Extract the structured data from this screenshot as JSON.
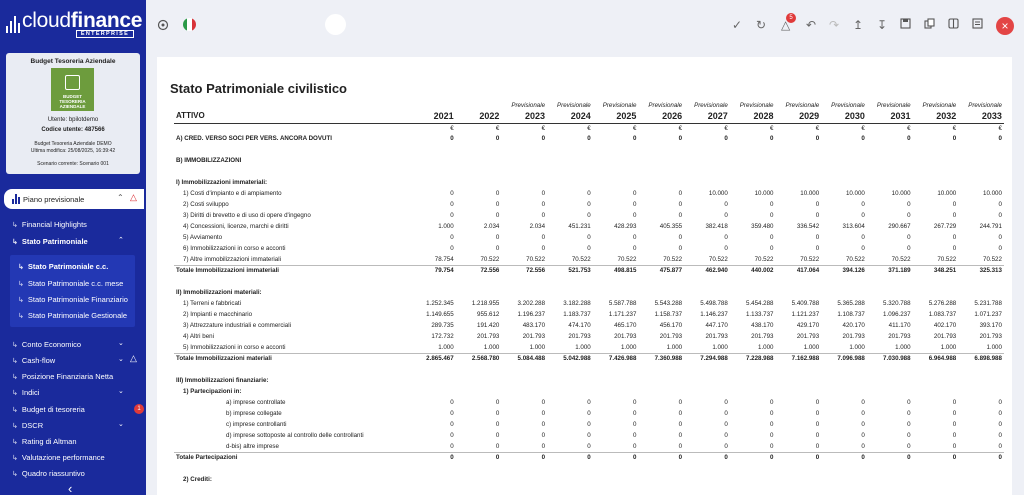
{
  "brand": {
    "name_light": "cloud",
    "name_bold": "finance",
    "edition": "ENTERPRISE"
  },
  "company": {
    "title": "Budget Tesoreria Aziendale",
    "logo_text": "BUDGET TESORERIA AZIENDALE",
    "user_line": "Utente: bpilotdemo",
    "code_line": "Codice utente: 487566",
    "demo_line": "Budget Tesoreria Aziendale DEMO",
    "modified_line": "Ultima modifica: 25/08/2025, 16:39:42",
    "scenario_line": "Scenario corrente: Scenario 001"
  },
  "nav": {
    "main_item": "Piano previsionale",
    "items": {
      "financial_highlights": "Financial Highlights",
      "stato_patrimoniale": "Stato Patrimoniale",
      "sp_cc": "Stato Patrimoniale c.c.",
      "sp_cc_mese": "Stato Patrimoniale c.c. mese",
      "sp_finanziario": "Stato Patrimoniale Finanziario",
      "sp_gestionale": "Stato Patrimoniale Gestionale",
      "conto_economico": "Conto Economico",
      "cash_flow": "Cash-flow",
      "pfn": "Posizione Finanziaria Netta",
      "indici": "Indici",
      "budget_tesoreria": "Budget di tesoreria",
      "dscr": "DSCR",
      "altman": "Rating di Altman",
      "valutazione": "Valutazione performance",
      "quadro": "Quadro riassuntivo"
    },
    "badge_budget": "1"
  },
  "topbar": {
    "notifications": "5"
  },
  "report": {
    "title": "Stato Patrimoniale civilistico",
    "header_label": "ATTIVO",
    "forecast_label": "Previsionale",
    "currency": "€",
    "years": [
      "2021",
      "2022",
      "2023",
      "2024",
      "2025",
      "2026",
      "2027",
      "2028",
      "2029",
      "2030",
      "2031",
      "2032",
      "2033"
    ],
    "rows": [
      {
        "label": "A) CRED. VERSO SOCI PER VERS. ANCORA DOVUTI",
        "type": "bold",
        "values": [
          "0",
          "0",
          "0",
          "0",
          "0",
          "0",
          "0",
          "0",
          "0",
          "0",
          "0",
          "0",
          "0"
        ]
      },
      {
        "label": "",
        "type": "spacer"
      },
      {
        "label": "B) IMMOBILIZZAZIONI",
        "type": "header"
      },
      {
        "label": "",
        "type": "spacer"
      },
      {
        "label": "I) Immobilizzazioni immateriali:",
        "type": "header"
      },
      {
        "label": "1) Costi d'impianto e di ampiamento",
        "indent": 1,
        "values": [
          "0",
          "0",
          "0",
          "0",
          "0",
          "0",
          "10.000",
          "10.000",
          "10.000",
          "10.000",
          "10.000",
          "10.000",
          "10.000"
        ]
      },
      {
        "label": "2) Costi sviluppo",
        "indent": 1,
        "values": [
          "0",
          "0",
          "0",
          "0",
          "0",
          "0",
          "0",
          "0",
          "0",
          "0",
          "0",
          "0",
          "0"
        ]
      },
      {
        "label": "3) Diritti di brevetto e di uso di opere d'ingegno",
        "indent": 1,
        "values": [
          "0",
          "0",
          "0",
          "0",
          "0",
          "0",
          "0",
          "0",
          "0",
          "0",
          "0",
          "0",
          "0"
        ]
      },
      {
        "label": "4) Concessioni, licenze, marchi e diritti",
        "indent": 1,
        "values": [
          "1.000",
          "2.034",
          "2.034",
          "451.231",
          "428.293",
          "405.355",
          "382.418",
          "359.480",
          "336.542",
          "313.604",
          "290.667",
          "267.729",
          "244.791"
        ]
      },
      {
        "label": "5) Avviamento",
        "indent": 1,
        "values": [
          "0",
          "0",
          "0",
          "0",
          "0",
          "0",
          "0",
          "0",
          "0",
          "0",
          "0",
          "0",
          "0"
        ]
      },
      {
        "label": "6) Immobilizzazioni in corso e acconti",
        "indent": 1,
        "values": [
          "0",
          "0",
          "0",
          "0",
          "0",
          "0",
          "0",
          "0",
          "0",
          "0",
          "0",
          "0",
          "0"
        ]
      },
      {
        "label": "7) Altre immobilizzazioni immateriali",
        "indent": 1,
        "values": [
          "78.754",
          "70.522",
          "70.522",
          "70.522",
          "70.522",
          "70.522",
          "70.522",
          "70.522",
          "70.522",
          "70.522",
          "70.522",
          "70.522",
          "70.522"
        ]
      },
      {
        "label": "Totale Immobilizzazioni immateriali",
        "type": "total",
        "values": [
          "79.754",
          "72.556",
          "72.556",
          "521.753",
          "498.815",
          "475.877",
          "462.940",
          "440.002",
          "417.064",
          "394.126",
          "371.189",
          "348.251",
          "325.313"
        ]
      },
      {
        "label": "",
        "type": "spacer"
      },
      {
        "label": "II) Immobilizzazioni materiali:",
        "type": "header"
      },
      {
        "label": "1) Terreni e fabbricati",
        "indent": 1,
        "values": [
          "1.252.345",
          "1.218.955",
          "3.202.288",
          "3.182.288",
          "5.587.788",
          "5.543.288",
          "5.498.788",
          "5.454.288",
          "5.409.788",
          "5.365.288",
          "5.320.788",
          "5.276.288",
          "5.231.788"
        ]
      },
      {
        "label": "2) Impianti e macchinario",
        "indent": 1,
        "values": [
          "1.149.655",
          "955.612",
          "1.196.237",
          "1.183.737",
          "1.171.237",
          "1.158.737",
          "1.146.237",
          "1.133.737",
          "1.121.237",
          "1.108.737",
          "1.096.237",
          "1.083.737",
          "1.071.237"
        ]
      },
      {
        "label": "3) Attrezzature industriali e commerciali",
        "indent": 1,
        "values": [
          "289.735",
          "191.420",
          "483.170",
          "474.170",
          "465.170",
          "456.170",
          "447.170",
          "438.170",
          "429.170",
          "420.170",
          "411.170",
          "402.170",
          "393.170"
        ]
      },
      {
        "label": "4) Altri beni",
        "indent": 1,
        "values": [
          "172.732",
          "201.793",
          "201.793",
          "201.793",
          "201.793",
          "201.793",
          "201.793",
          "201.793",
          "201.793",
          "201.793",
          "201.793",
          "201.793",
          "201.793"
        ]
      },
      {
        "label": "5) Immobilizzazioni in corso e acconti",
        "indent": 1,
        "values": [
          "1.000",
          "1.000",
          "1.000",
          "1.000",
          "1.000",
          "1.000",
          "1.000",
          "1.000",
          "1.000",
          "1.000",
          "1.000",
          "1.000",
          "1.000"
        ]
      },
      {
        "label": "Totale Immobilizzazioni materiali",
        "type": "total",
        "values": [
          "2.865.467",
          "2.568.780",
          "5.084.488",
          "5.042.988",
          "7.426.988",
          "7.360.988",
          "7.294.988",
          "7.228.988",
          "7.162.988",
          "7.096.988",
          "7.030.988",
          "6.964.988",
          "6.898.988"
        ]
      },
      {
        "label": "",
        "type": "spacer"
      },
      {
        "label": "III) Immobilizzazioni finanziarie:",
        "type": "header"
      },
      {
        "label": "1) Partecipazioni in:",
        "type": "header",
        "indent": 1
      },
      {
        "label": "a) imprese controllate",
        "indent": 2,
        "values": [
          "0",
          "0",
          "0",
          "0",
          "0",
          "0",
          "0",
          "0",
          "0",
          "0",
          "0",
          "0",
          "0"
        ]
      },
      {
        "label": "b) imprese collegate",
        "indent": 2,
        "values": [
          "0",
          "0",
          "0",
          "0",
          "0",
          "0",
          "0",
          "0",
          "0",
          "0",
          "0",
          "0",
          "0"
        ]
      },
      {
        "label": "c) imprese controllanti",
        "indent": 2,
        "values": [
          "0",
          "0",
          "0",
          "0",
          "0",
          "0",
          "0",
          "0",
          "0",
          "0",
          "0",
          "0",
          "0"
        ]
      },
      {
        "label": "d) imprese sottoposte al controllo delle controllanti",
        "indent": 2,
        "values": [
          "0",
          "0",
          "0",
          "0",
          "0",
          "0",
          "0",
          "0",
          "0",
          "0",
          "0",
          "0",
          "0"
        ]
      },
      {
        "label": "d-bis) altre imprese",
        "indent": 2,
        "values": [
          "0",
          "0",
          "0",
          "0",
          "0",
          "0",
          "0",
          "0",
          "0",
          "0",
          "0",
          "0",
          "0"
        ]
      },
      {
        "label": "Totale Partecipazioni",
        "type": "total",
        "values": [
          "0",
          "0",
          "0",
          "0",
          "0",
          "0",
          "0",
          "0",
          "0",
          "0",
          "0",
          "0",
          "0"
        ]
      },
      {
        "label": "",
        "type": "spacer"
      },
      {
        "label": "2) Crediti:",
        "type": "header",
        "indent": 1
      }
    ]
  }
}
